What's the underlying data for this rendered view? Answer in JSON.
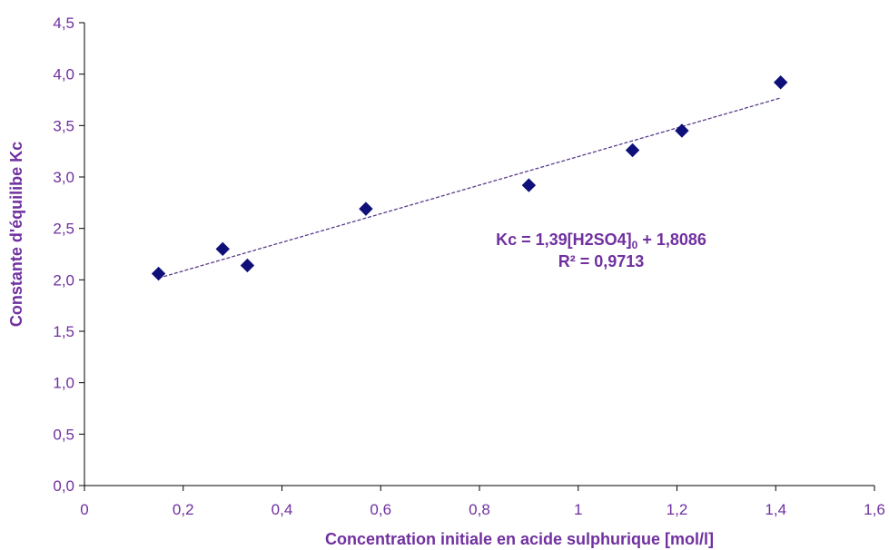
{
  "chart_data": {
    "type": "scatter",
    "xlabel": "Concentration initiale  en acide sulphurique [mol/l]",
    "ylabel": "Constante d'équilibe Kc",
    "xlim": [
      0,
      1.6
    ],
    "ylim": [
      0,
      4.5
    ],
    "x_ticks": [
      0,
      0.2,
      0.4,
      0.6,
      0.8,
      1,
      1.2,
      1.4,
      1.6
    ],
    "x_tick_labels": [
      "0",
      "0,2",
      "0,4",
      "0,6",
      "0,8",
      "1",
      "1,2",
      "1,4",
      "1,6"
    ],
    "y_ticks": [
      0,
      0.5,
      1,
      1.5,
      2,
      2.5,
      3,
      3.5,
      4,
      4.5
    ],
    "y_tick_labels": [
      "0,0",
      "0,5",
      "1,0",
      "1,5",
      "2,0",
      "2,5",
      "3,0",
      "3,5",
      "4,0",
      "4,5"
    ],
    "grid": false,
    "series": [
      {
        "marker": "diamond",
        "color": "#10107a",
        "points": [
          {
            "x": 0.15,
            "y": 2.06
          },
          {
            "x": 0.28,
            "y": 2.3
          },
          {
            "x": 0.33,
            "y": 2.14
          },
          {
            "x": 0.57,
            "y": 2.69
          },
          {
            "x": 0.9,
            "y": 2.92
          },
          {
            "x": 1.11,
            "y": 3.26
          },
          {
            "x": 1.21,
            "y": 3.45
          },
          {
            "x": 1.41,
            "y": 3.92
          }
        ]
      }
    ],
    "trendline": {
      "type": "linear",
      "style": "dashed",
      "color": "#5a3d8a",
      "slope": 1.39,
      "intercept": 1.8086,
      "x_start": 0.15,
      "x_end": 1.41
    },
    "annotation": {
      "line1": "Kc = 1,39[H2SO4]",
      "line1_subscript": "0",
      "line1_suffix": " + 1,8086",
      "line2": "R² = 0,9713"
    },
    "colors": {
      "text": "#7030a0",
      "axis": "#000000",
      "marker": "#10107a",
      "trendline": "#5a3d8a"
    }
  }
}
